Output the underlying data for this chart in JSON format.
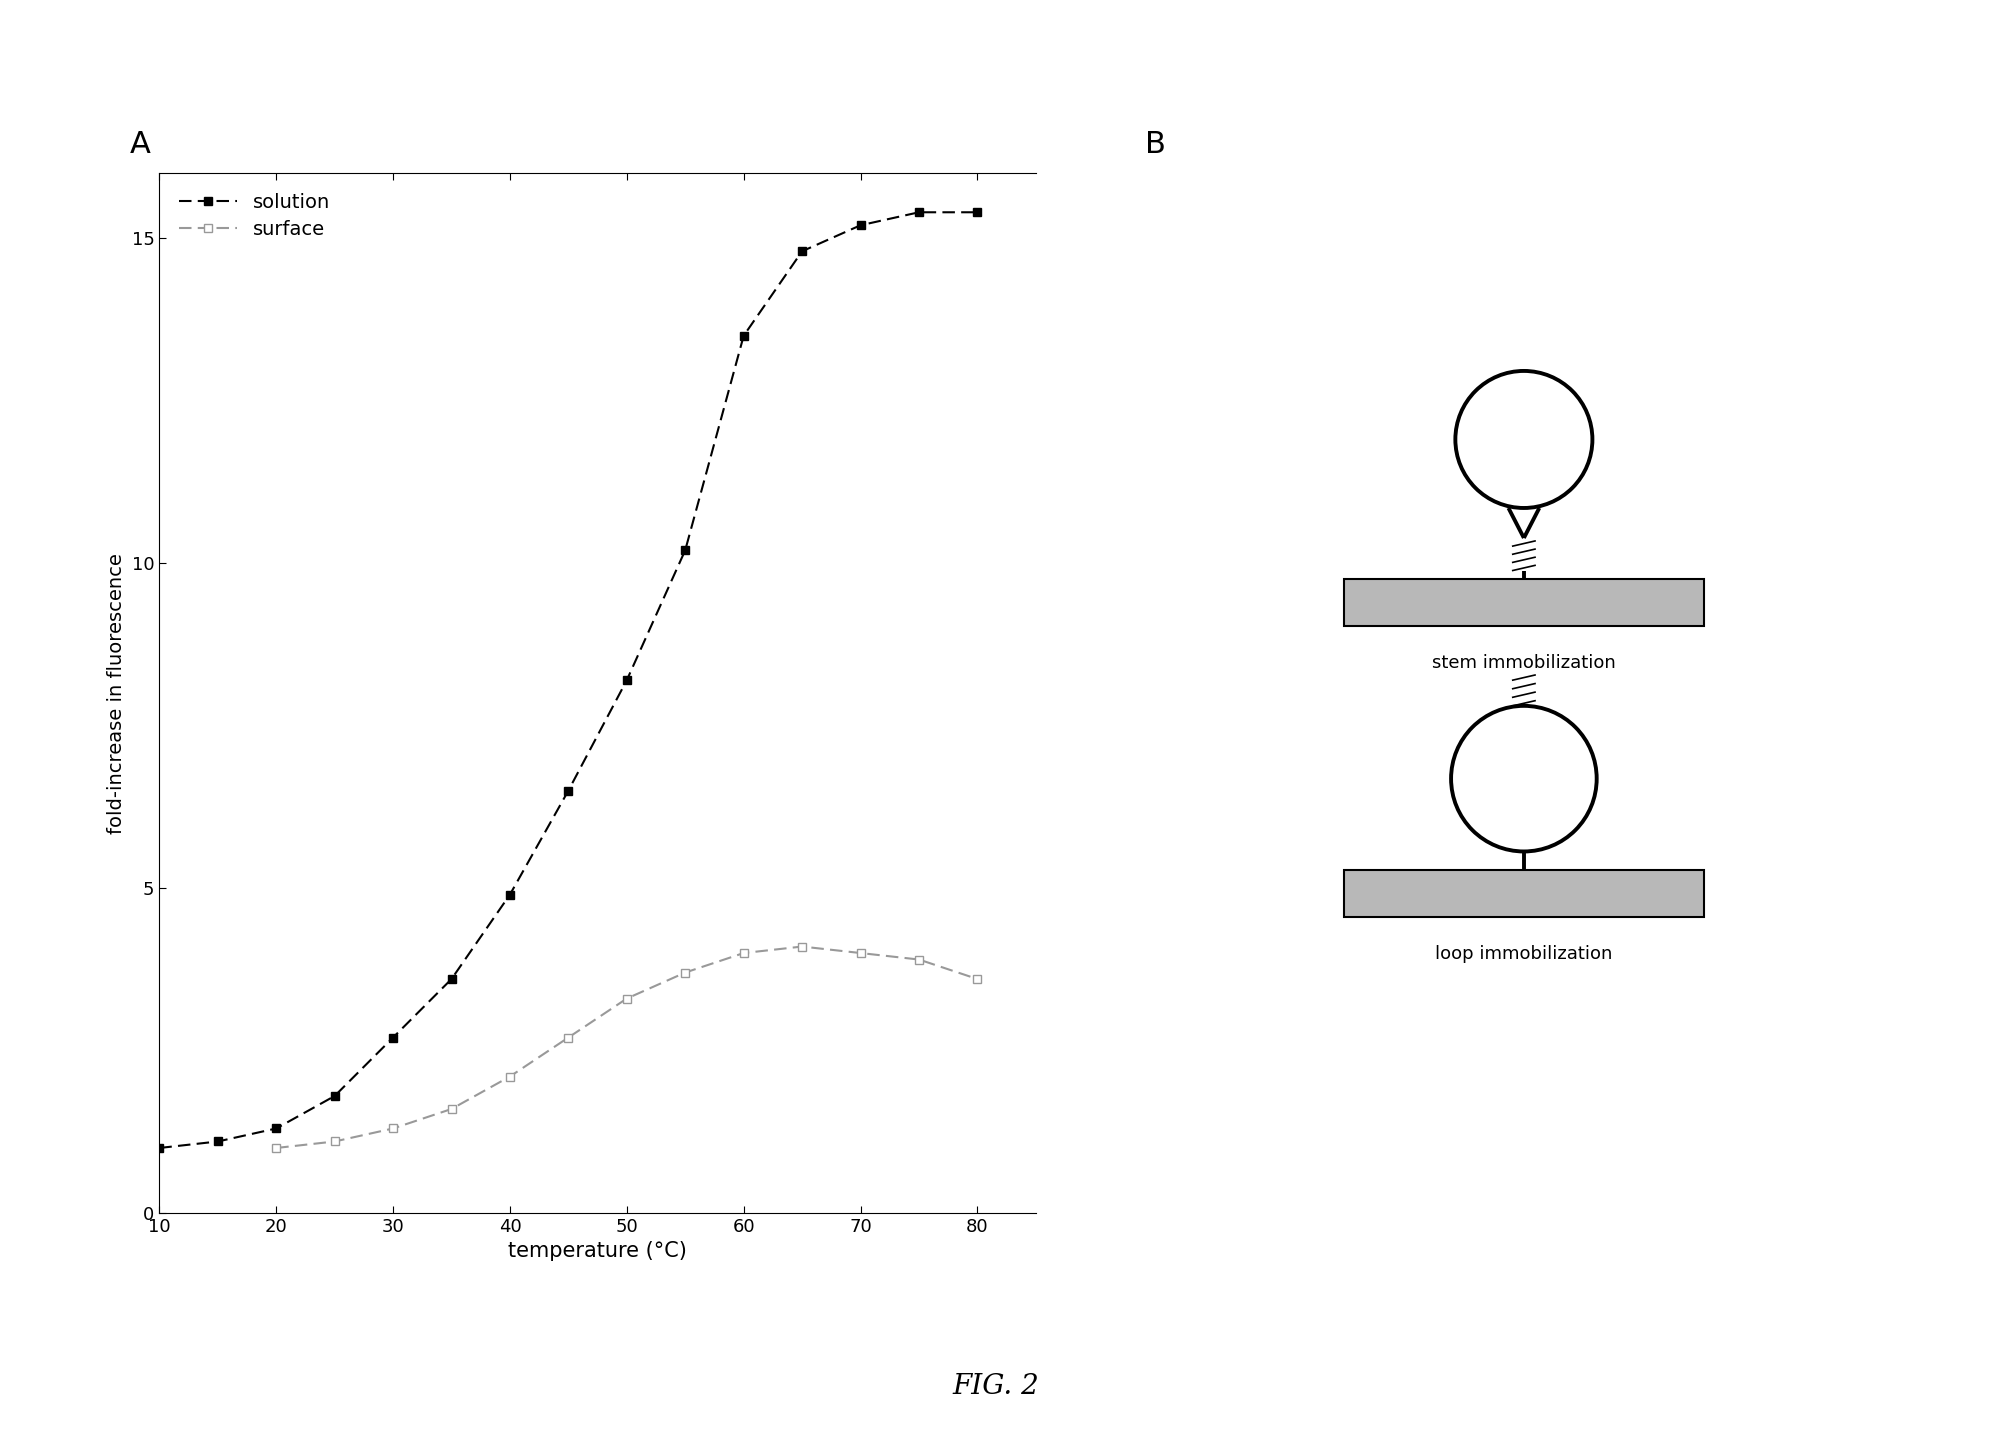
{
  "solution_x": [
    10,
    15,
    20,
    25,
    30,
    35,
    40,
    45,
    50,
    55,
    60,
    65,
    70,
    75,
    80
  ],
  "solution_y": [
    1.0,
    1.1,
    1.3,
    1.8,
    2.7,
    3.6,
    4.9,
    6.5,
    8.2,
    10.2,
    13.5,
    14.8,
    15.2,
    15.4,
    15.4
  ],
  "surface_x": [
    20,
    25,
    30,
    35,
    40,
    45,
    50,
    55,
    60,
    65,
    70,
    75,
    80
  ],
  "surface_y": [
    1.0,
    1.1,
    1.3,
    1.6,
    2.1,
    2.7,
    3.3,
    3.7,
    4.0,
    4.1,
    4.0,
    3.9,
    3.6
  ],
  "xlabel": "temperature (°C)",
  "ylabel": "fold-increase in fluorescence",
  "xlim": [
    10,
    85
  ],
  "ylim": [
    0,
    16
  ],
  "yticks": [
    0,
    5,
    10,
    15
  ],
  "xticks": [
    10,
    20,
    30,
    40,
    50,
    60,
    70,
    80
  ],
  "solution_color": "#000000",
  "surface_color": "#999999",
  "label_A": "A",
  "label_B": "B",
  "stem_label": "stem immobilization",
  "loop_label": "loop immobilization",
  "fig_label": "FIG. 2"
}
